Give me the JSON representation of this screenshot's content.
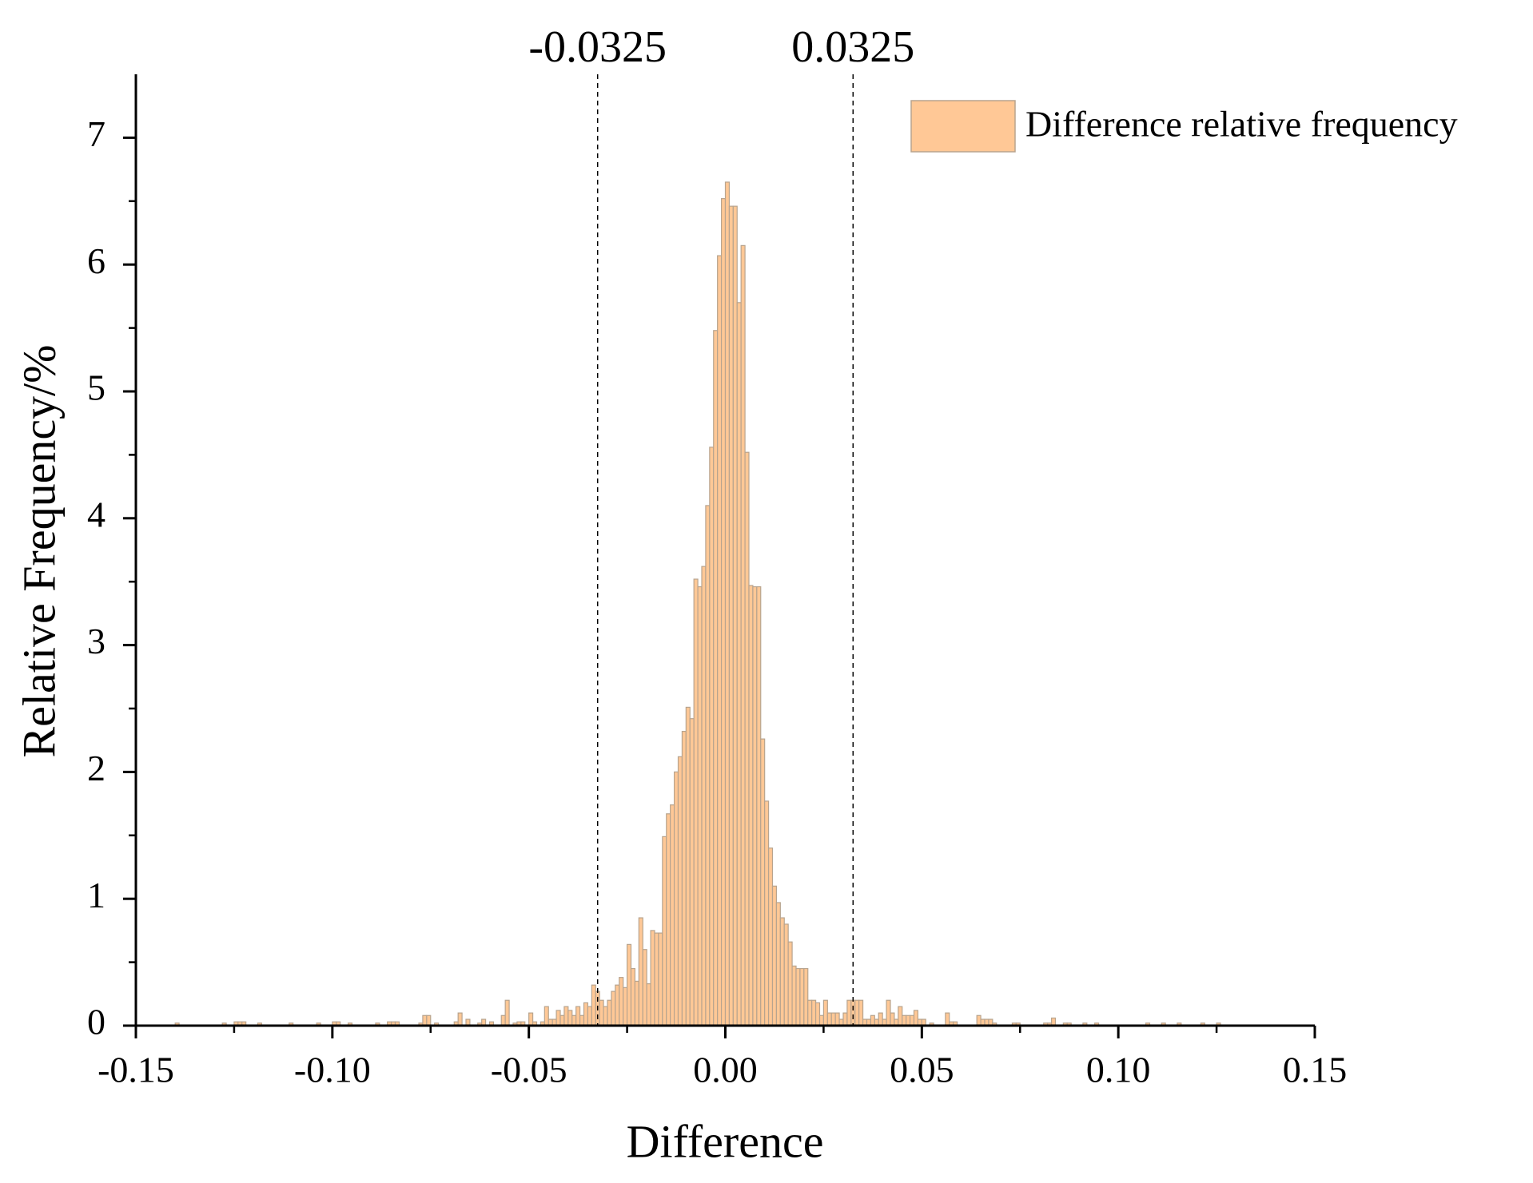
{
  "chart_data": {
    "type": "histogram",
    "xlabel": "Difference",
    "ylabel": "Relative Frequency/%",
    "xlim": [
      -0.15,
      0.15
    ],
    "ylim": [
      0,
      7.5
    ],
    "xticks": [
      -0.15,
      {
        "value": -0.1,
        "label": "-0.10"
      },
      -0.05,
      {
        "value": 0,
        "label": "0.00"
      },
      0.05,
      {
        "value": 0.1,
        "label": "0.10"
      },
      0.15
    ],
    "xminorticks": [
      -0.125,
      -0.075,
      -0.025,
      0.025,
      0.075,
      0.125
    ],
    "yticks": [
      0,
      1,
      2,
      3,
      4,
      5,
      6,
      7
    ],
    "yminorticks": [
      0.5,
      1.5,
      2.5,
      3.5,
      4.5,
      5.5,
      6.5
    ],
    "vlines": [
      -0.0325,
      0.0325
    ],
    "legend": "upper right",
    "bins": [
      -0.14,
      -0.139,
      -0.128,
      -0.127,
      -0.125,
      -0.124,
      -0.123,
      -0.122,
      -0.119,
      -0.118,
      -0.111,
      -0.11,
      -0.104,
      -0.103,
      -0.1,
      -0.099,
      -0.098,
      -0.096,
      -0.095,
      -0.089,
      -0.088,
      -0.086,
      -0.085,
      -0.084,
      -0.083,
      -0.078,
      -0.077,
      -0.076,
      -0.075,
      -0.074,
      -0.073,
      -0.069,
      -0.068,
      -0.067,
      -0.066,
      -0.065,
      -0.063,
      -0.062,
      -0.061,
      -0.06,
      -0.059,
      -0.057,
      -0.056,
      -0.055,
      -0.054,
      -0.053,
      -0.052,
      -0.051,
      -0.05,
      -0.049,
      -0.048,
      -0.047,
      -0.046,
      -0.045,
      -0.044,
      -0.043,
      -0.042,
      -0.041,
      -0.04,
      -0.039,
      -0.038,
      -0.037,
      -0.036,
      -0.035,
      -0.034,
      -0.033,
      -0.032,
      -0.031,
      -0.03,
      -0.029,
      -0.028,
      -0.027,
      -0.026,
      -0.025,
      -0.024,
      -0.023,
      -0.022,
      -0.021,
      -0.02,
      -0.019,
      -0.018,
      -0.017,
      -0.016,
      -0.015,
      -0.014,
      -0.013,
      -0.012,
      -0.011,
      -0.01,
      -0.009,
      -0.008,
      -0.007,
      -0.006,
      -0.005,
      -0.004,
      -0.003,
      -0.002,
      -0.001,
      0,
      0.001,
      0.002,
      0.003,
      0.004,
      0.005,
      0.006,
      0.007,
      0.008,
      0.009,
      0.01,
      0.011,
      0.012,
      0.013,
      0.014,
      0.015,
      0.016,
      0.017,
      0.018,
      0.019,
      0.02,
      0.021,
      0.022,
      0.023,
      0.024,
      0.025,
      0.026,
      0.027,
      0.028,
      0.029,
      0.03,
      0.031,
      0.032,
      0.033,
      0.034,
      0.035,
      0.036,
      0.037,
      0.038,
      0.039,
      0.04,
      0.041,
      0.042,
      0.043,
      0.044,
      0.045,
      0.046,
      0.047,
      0.048,
      0.049,
      0.05,
      0.051,
      0.052,
      0.053,
      0.056,
      0.057,
      0.058,
      0.059,
      0.064,
      0.065,
      0.066,
      0.067,
      0.068,
      0.069,
      0.073,
      0.074,
      0.075,
      0.081,
      0.082,
      0.083,
      0.084,
      0.086,
      0.087,
      0.088,
      0.091,
      0.092,
      0.094,
      0.095,
      0.107,
      0.108,
      0.111,
      0.112,
      0.115,
      0.116,
      0.121,
      0.122,
      0.125,
      0.126
    ],
    "series": [
      {
        "name": "Difference relative frequency",
        "color": "#ffc896",
        "edgecolor": "#b8a48e",
        "values": [
          0.02,
          0,
          0.02,
          0,
          0.03,
          0.03,
          0.03,
          0,
          0.02,
          0,
          0.02,
          0,
          0.02,
          0,
          0.03,
          0.03,
          0,
          0.02,
          0,
          0.02,
          0,
          0.03,
          0.03,
          0.03,
          0,
          0.02,
          0.08,
          0.08,
          0,
          0.02,
          0,
          0.03,
          0.1,
          0,
          0.05,
          0,
          0.02,
          0.05,
          0,
          0.03,
          0,
          0.08,
          0.2,
          0,
          0.02,
          0.03,
          0.03,
          0,
          0.1,
          0.03,
          0,
          0.03,
          0.15,
          0.05,
          0.05,
          0.12,
          0.08,
          0.15,
          0.12,
          0.08,
          0.15,
          0.08,
          0.18,
          0.15,
          0.32,
          0.27,
          0.2,
          0.15,
          0.2,
          0.27,
          0.32,
          0.38,
          0.3,
          0.64,
          0.45,
          0.35,
          0.85,
          0.6,
          0.33,
          0.75,
          0.73,
          0.73,
          1.49,
          1.67,
          1.74,
          2.0,
          2.12,
          2.32,
          2.51,
          2.42,
          3.52,
          3.46,
          3.62,
          4.1,
          4.56,
          5.48,
          6.07,
          6.52,
          6.65,
          6.46,
          6.46,
          5.7,
          6.15,
          4.52,
          3.47,
          3.46,
          3.46,
          2.26,
          1.77,
          1.4,
          1.1,
          0.97,
          0.85,
          0.8,
          0.66,
          0.47,
          0.45,
          0.45,
          0.45,
          0.2,
          0.2,
          0.18,
          0.08,
          0.2,
          0.1,
          0.1,
          0.1,
          0.05,
          0.1,
          0.2,
          0.2,
          0.2,
          0.2,
          0.05,
          0.05,
          0.08,
          0.05,
          0.1,
          0.05,
          0.2,
          0.1,
          0.05,
          0.15,
          0.08,
          0.08,
          0.08,
          0.12,
          0.05,
          0.05,
          0,
          0.02,
          0,
          0.1,
          0.03,
          0.03,
          0,
          0.08,
          0.05,
          0.05,
          0.05,
          0.02,
          0,
          0.02,
          0.02,
          0,
          0.02,
          0.02,
          0.06,
          0,
          0.02,
          0.02,
          0,
          0.02,
          0,
          0.02,
          0,
          0.02,
          0,
          0.02,
          0,
          0.02,
          0,
          0.02,
          0,
          0.02
        ]
      }
    ]
  }
}
